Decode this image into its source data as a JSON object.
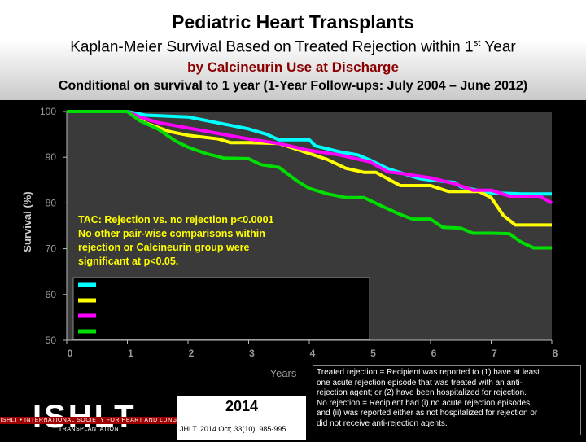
{
  "header": {
    "title": "Pediatric Heart Transplants",
    "subtitle_main": "Kaplan-Meier Survival Based on Treated Rejection within 1",
    "subtitle_sup": "st",
    "subtitle_end": " Year",
    "subtitle2": "by Calcineurin Use at Discharge",
    "subtitle3": "Conditional on survival to 1 year (1-Year Follow-ups: July 2004 – June 2012)"
  },
  "chart_data": {
    "type": "line",
    "ylabel": "Survival (%)",
    "xlabel": "Years",
    "xlim": [
      0,
      8
    ],
    "ylim": [
      50,
      100
    ],
    "x_ticks": [
      "0",
      "1",
      "2",
      "3",
      "4",
      "5",
      "6",
      "7",
      "8"
    ],
    "y_ticks": [
      "50",
      "60",
      "70",
      "80",
      "90",
      "100"
    ],
    "grid": false,
    "annotation": "TAC: Rejection vs. no rejection p<0.0001 No other pair-wise comparisons within rejection or Calcineurin group were significant at p<0.05.",
    "series": [
      {
        "color": "#00ffff",
        "points": [
          [
            0,
            100
          ],
          [
            1,
            100
          ],
          [
            1.3,
            99.2
          ],
          [
            2,
            98.8
          ],
          [
            2.5,
            97.5
          ],
          [
            3,
            96.2
          ],
          [
            3.3,
            95
          ],
          [
            3.5,
            93.8
          ],
          [
            4,
            93.8
          ],
          [
            4.1,
            92.5
          ],
          [
            4.5,
            91.2
          ],
          [
            4.8,
            90.5
          ],
          [
            5,
            89.4
          ],
          [
            5.3,
            87.5
          ],
          [
            5.8,
            85.4
          ],
          [
            6,
            85
          ],
          [
            6.4,
            84.5
          ],
          [
            6.5,
            83.5
          ],
          [
            7,
            82.2
          ],
          [
            7.5,
            82
          ],
          [
            8,
            82
          ]
        ]
      },
      {
        "color": "#ffff00",
        "points": [
          [
            0,
            100
          ],
          [
            1,
            100
          ],
          [
            1.3,
            97.5
          ],
          [
            1.7,
            95.6
          ],
          [
            2,
            94.8
          ],
          [
            2.5,
            94
          ],
          [
            2.7,
            93.2
          ],
          [
            3,
            93.2
          ],
          [
            3.5,
            93
          ],
          [
            3.8,
            91.7
          ],
          [
            4.3,
            89.5
          ],
          [
            4.6,
            87.6
          ],
          [
            4.9,
            86.7
          ],
          [
            5.1,
            86.7
          ],
          [
            5.5,
            83.8
          ],
          [
            5.8,
            83.8
          ],
          [
            6,
            83.8
          ],
          [
            6.3,
            82.5
          ],
          [
            6.6,
            82.5
          ],
          [
            6.8,
            82.5
          ],
          [
            7,
            81.2
          ],
          [
            7.2,
            77.3
          ],
          [
            7.4,
            75.2
          ],
          [
            7.6,
            75.2
          ],
          [
            8,
            75.2
          ]
        ]
      },
      {
        "color": "#ff00ff",
        "points": [
          [
            0,
            100
          ],
          [
            1,
            100
          ],
          [
            1.2,
            98.8
          ],
          [
            1.5,
            97.6
          ],
          [
            2,
            96.4
          ],
          [
            2.5,
            95.2
          ],
          [
            3,
            94
          ],
          [
            3.5,
            93
          ],
          [
            4,
            91.5
          ],
          [
            4.5,
            90.5
          ],
          [
            5,
            89
          ],
          [
            5.3,
            86.8
          ],
          [
            5.5,
            86.5
          ],
          [
            6,
            85.5
          ],
          [
            6.4,
            84.2
          ],
          [
            6.7,
            82.8
          ],
          [
            7,
            82.8
          ],
          [
            7.3,
            81.5
          ],
          [
            7.8,
            81.5
          ],
          [
            8,
            80
          ]
        ]
      },
      {
        "color": "#00dd00",
        "points": [
          [
            0,
            100
          ],
          [
            1,
            100
          ],
          [
            1.2,
            98
          ],
          [
            1.5,
            96.2
          ],
          [
            1.8,
            93.5
          ],
          [
            2,
            92.2
          ],
          [
            2.3,
            90.8
          ],
          [
            2.6,
            89.8
          ],
          [
            3,
            89.7
          ],
          [
            3.2,
            88.4
          ],
          [
            3.5,
            87.8
          ],
          [
            3.8,
            84.8
          ],
          [
            4,
            83.2
          ],
          [
            4.3,
            82
          ],
          [
            4.6,
            81.2
          ],
          [
            4.9,
            81.2
          ],
          [
            5.2,
            79.3
          ],
          [
            5.5,
            77.5
          ],
          [
            5.7,
            76.5
          ],
          [
            6,
            76.5
          ],
          [
            6.2,
            74.7
          ],
          [
            6.5,
            74.5
          ],
          [
            6.7,
            73.4
          ],
          [
            7,
            73.4
          ],
          [
            7.3,
            73.3
          ],
          [
            7.5,
            71.4
          ],
          [
            7.7,
            70.2
          ],
          [
            8,
            70.2
          ]
        ]
      }
    ]
  },
  "footnote": {
    "lines": [
      "Treated rejection = Recipient was reported to (1) have at least",
      "one acute rejection episode that was treated with an anti-",
      "rejection agent; or (2) have been hospitalized for rejection.",
      "No rejection  = Recipient had (i) no acute rejection episodes",
      "and (ii) was reported either as not hospitalized for rejection or",
      "did not receive anti-rejection agents."
    ]
  },
  "logo": {
    "name": "ISHLT",
    "tagline": "ISHLT • INTERNATIONAL SOCIETY FOR HEART AND LUNG TRANSPLANTATION"
  },
  "citation": {
    "year": "2014",
    "text": "JHLT. 2014 Oct; 33(10): 985-995"
  }
}
